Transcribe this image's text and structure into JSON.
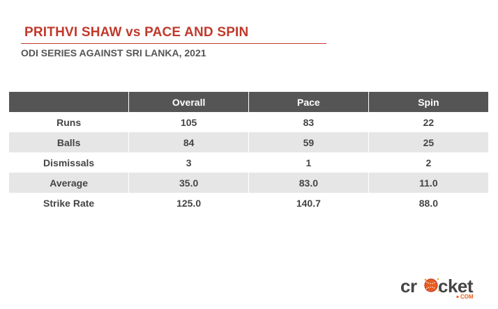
{
  "title": "PRITHVI SHAW vs PACE AND SPIN",
  "subtitle": "ODI SERIES AGAINST SRI LANKA, 2021",
  "table": {
    "headers": [
      "",
      "Overall",
      "Pace",
      "Spin"
    ],
    "rows": [
      [
        "Runs",
        "105",
        "83",
        "22"
      ],
      [
        "Balls",
        "84",
        "59",
        "25"
      ],
      [
        "Dismissals",
        "3",
        "1",
        "2"
      ],
      [
        "Average",
        "35.0",
        "83.0",
        "11.0"
      ],
      [
        "Strike Rate",
        "125.0",
        "140.7",
        "88.0"
      ]
    ]
  },
  "logo": {
    "word": "cricket",
    "suffix": ".COM",
    "icon": "cricket-ball-logo-icon"
  },
  "colors": {
    "accent": "#c0392b",
    "header_bg": "#555555",
    "row_shade": "#e6e6e6",
    "logo_text": "#444444"
  }
}
